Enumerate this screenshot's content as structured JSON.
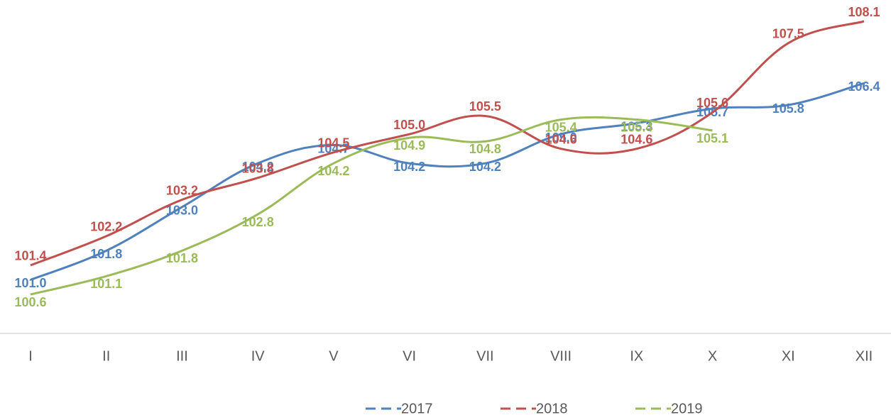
{
  "chart_data": {
    "type": "line",
    "categories": [
      "I",
      "II",
      "III",
      "IV",
      "V",
      "VI",
      "VII",
      "VIII",
      "IX",
      "X",
      "XI",
      "XII"
    ],
    "series": [
      {
        "name": "2017",
        "color": "#4f81bd",
        "values": [
          101.0,
          101.8,
          103.0,
          104.2,
          104.7,
          104.2,
          104.2,
          105.0,
          105.3,
          105.7,
          105.8,
          106.4
        ],
        "value_labels": [
          "101.0",
          "101.8",
          "103.0",
          "104.2",
          "104.7",
          "104.2",
          "104.2",
          "105.0",
          "105.3",
          "105.7",
          "105.8",
          "106.4"
        ]
      },
      {
        "name": "2018",
        "color": "#c0504d",
        "values": [
          101.4,
          102.2,
          103.2,
          103.8,
          104.5,
          105.0,
          105.5,
          104.6,
          104.6,
          105.6,
          107.5,
          108.1
        ],
        "value_labels": [
          "101.4",
          "102.2",
          "103.2",
          "103.8",
          "104.5",
          "105.0",
          "105.5",
          "104.6",
          "104.6",
          "105.6",
          "107.5",
          "108.1"
        ]
      },
      {
        "name": "2019",
        "color": "#9bbb59",
        "values": [
          100.6,
          101.1,
          101.8,
          102.8,
          104.2,
          104.9,
          104.8,
          105.4,
          105.4,
          105.1,
          null,
          null
        ],
        "value_labels": [
          "100.6",
          "101.1",
          "101.8",
          "102.8",
          "104.2",
          "104.9",
          "104.8",
          "105.4",
          "105.4",
          "105.1",
          null,
          null
        ]
      }
    ],
    "legend": "bottom"
  }
}
